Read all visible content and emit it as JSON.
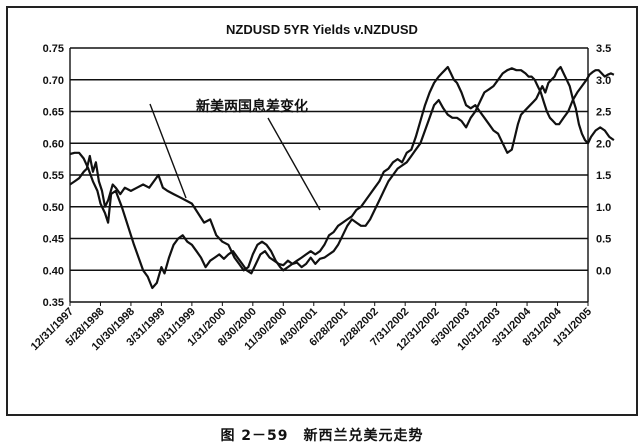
{
  "chart_data": {
    "type": "line",
    "title": "NZDUSD 5YR Yields v.NZDUSD",
    "annotation": "新美两国息差变化",
    "caption": "图 2－59　新西兰兑美元走势",
    "ylim_left": [
      0.35,
      0.75
    ],
    "ylim_right": [
      -0.5,
      3.5
    ],
    "yticks_left": [
      "0.35",
      "0.40",
      "0.45",
      "0.50",
      "0.55",
      "0.60",
      "0.65",
      "0.70",
      "0.75"
    ],
    "yticks_right": [
      "",
      "0.0",
      "0.5",
      "1.0",
      "1.5",
      "2.0",
      "2.5",
      "3.0",
      "3.5"
    ],
    "x_tick_labels": [
      "12/31/1997",
      "5/28/1998",
      "10/30/1998",
      "3/31/1999",
      "8/31/1999",
      "1/31/2000",
      "8/30/2000",
      "11/30/2000",
      "4/30/2001",
      "6/28/2001",
      "2/28/2002",
      "7/31/2002",
      "12/31/2002",
      "5/30/2003",
      "10/31/2003",
      "3/31/2004",
      "8/31/2004",
      "1/31/2005"
    ],
    "grid": "horizontal",
    "series": [
      {
        "axis": "left",
        "points": [
          [
            0.0,
            0.583
          ],
          [
            0.15,
            0.585
          ],
          [
            0.3,
            0.585
          ],
          [
            0.45,
            0.576
          ],
          [
            0.6,
            0.56
          ],
          [
            0.75,
            0.54
          ],
          [
            0.9,
            0.525
          ],
          [
            1.0,
            0.505
          ],
          [
            1.15,
            0.49
          ],
          [
            1.25,
            0.475
          ],
          [
            1.35,
            0.52
          ],
          [
            1.5,
            0.525
          ],
          [
            1.7,
            0.5
          ],
          [
            1.9,
            0.47
          ],
          [
            2.1,
            0.44
          ],
          [
            2.25,
            0.42
          ],
          [
            2.4,
            0.4
          ],
          [
            2.55,
            0.39
          ],
          [
            2.7,
            0.372
          ],
          [
            2.85,
            0.38
          ],
          [
            3.0,
            0.405
          ],
          [
            3.1,
            0.395
          ],
          [
            3.25,
            0.42
          ],
          [
            3.4,
            0.44
          ],
          [
            3.55,
            0.45
          ],
          [
            3.7,
            0.455
          ],
          [
            3.85,
            0.445
          ],
          [
            4.0,
            0.44
          ],
          [
            4.15,
            0.43
          ],
          [
            4.3,
            0.42
          ],
          [
            4.45,
            0.405
          ],
          [
            4.6,
            0.415
          ],
          [
            4.75,
            0.42
          ],
          [
            4.9,
            0.425
          ],
          [
            5.05,
            0.418
          ],
          [
            5.2,
            0.425
          ],
          [
            5.35,
            0.43
          ],
          [
            5.5,
            0.42
          ],
          [
            5.65,
            0.41
          ],
          [
            5.8,
            0.4
          ],
          [
            5.95,
            0.395
          ],
          [
            6.1,
            0.41
          ],
          [
            6.25,
            0.425
          ],
          [
            6.4,
            0.43
          ],
          [
            6.55,
            0.42
          ],
          [
            6.7,
            0.415
          ],
          [
            6.85,
            0.41
          ],
          [
            7.0,
            0.408
          ],
          [
            7.15,
            0.415
          ],
          [
            7.3,
            0.41
          ],
          [
            7.45,
            0.412
          ],
          [
            7.6,
            0.405
          ],
          [
            7.75,
            0.41
          ],
          [
            7.9,
            0.42
          ],
          [
            8.05,
            0.41
          ],
          [
            8.2,
            0.418
          ],
          [
            8.35,
            0.42
          ],
          [
            8.5,
            0.425
          ],
          [
            8.65,
            0.43
          ],
          [
            8.8,
            0.44
          ],
          [
            8.95,
            0.455
          ],
          [
            9.1,
            0.47
          ],
          [
            9.25,
            0.48
          ],
          [
            9.4,
            0.475
          ],
          [
            9.55,
            0.47
          ],
          [
            9.7,
            0.47
          ],
          [
            9.85,
            0.48
          ],
          [
            10.0,
            0.495
          ],
          [
            10.15,
            0.51
          ],
          [
            10.3,
            0.525
          ],
          [
            10.45,
            0.54
          ],
          [
            10.6,
            0.55
          ],
          [
            10.75,
            0.56
          ],
          [
            10.9,
            0.565
          ],
          [
            11.05,
            0.57
          ],
          [
            11.2,
            0.58
          ],
          [
            11.35,
            0.59
          ],
          [
            11.5,
            0.6
          ],
          [
            11.65,
            0.62
          ],
          [
            11.8,
            0.64
          ],
          [
            11.95,
            0.66
          ],
          [
            12.1,
            0.668
          ],
          [
            12.25,
            0.655
          ],
          [
            12.4,
            0.645
          ],
          [
            12.55,
            0.64
          ],
          [
            12.7,
            0.64
          ],
          [
            12.85,
            0.635
          ],
          [
            13.0,
            0.625
          ],
          [
            13.15,
            0.64
          ],
          [
            13.3,
            0.65
          ],
          [
            13.45,
            0.665
          ],
          [
            13.6,
            0.68
          ],
          [
            13.75,
            0.685
          ],
          [
            13.9,
            0.69
          ],
          [
            14.05,
            0.7
          ],
          [
            14.2,
            0.71
          ],
          [
            14.35,
            0.715
          ],
          [
            14.5,
            0.718
          ],
          [
            14.65,
            0.715
          ],
          [
            14.8,
            0.715
          ],
          [
            14.95,
            0.71
          ],
          [
            15.05,
            0.705
          ],
          [
            15.15,
            0.705
          ],
          [
            15.25,
            0.7
          ],
          [
            15.35,
            0.69
          ],
          [
            15.45,
            0.68
          ],
          [
            15.55,
            0.665
          ],
          [
            15.65,
            0.65
          ],
          [
            15.75,
            0.64
          ],
          [
            15.85,
            0.635
          ],
          [
            15.95,
            0.63
          ],
          [
            16.05,
            0.63
          ],
          [
            16.2,
            0.64
          ],
          [
            16.35,
            0.65
          ],
          [
            16.5,
            0.668
          ],
          [
            16.65,
            0.68
          ],
          [
            16.8,
            0.69
          ],
          [
            16.95,
            0.7
          ],
          [
            17.05,
            0.708
          ],
          [
            17.15,
            0.712
          ],
          [
            17.25,
            0.715
          ],
          [
            17.35,
            0.715
          ],
          [
            17.45,
            0.71
          ],
          [
            17.55,
            0.705
          ],
          [
            17.65,
            0.708
          ],
          [
            17.75,
            0.71
          ],
          [
            17.85,
            0.708
          ]
        ]
      },
      {
        "axis": "right",
        "points": [
          [
            0.0,
            1.35
          ],
          [
            0.15,
            1.4
          ],
          [
            0.3,
            1.45
          ],
          [
            0.45,
            1.55
          ],
          [
            0.55,
            1.6
          ],
          [
            0.65,
            1.8
          ],
          [
            0.75,
            1.55
          ],
          [
            0.85,
            1.7
          ],
          [
            0.95,
            1.4
          ],
          [
            1.05,
            1.25
          ],
          [
            1.15,
            1.0
          ],
          [
            1.25,
            1.1
          ],
          [
            1.4,
            1.35
          ],
          [
            1.5,
            1.3
          ],
          [
            1.65,
            1.2
          ],
          [
            1.8,
            1.3
          ],
          [
            2.0,
            1.25
          ],
          [
            2.2,
            1.3
          ],
          [
            2.4,
            1.35
          ],
          [
            2.6,
            1.3
          ],
          [
            2.75,
            1.4
          ],
          [
            2.9,
            1.5
          ],
          [
            3.05,
            1.3
          ],
          [
            3.2,
            1.25
          ],
          [
            3.4,
            1.2
          ],
          [
            3.6,
            1.15
          ],
          [
            3.8,
            1.1
          ],
          [
            4.0,
            1.05
          ],
          [
            4.2,
            0.9
          ],
          [
            4.4,
            0.75
          ],
          [
            4.6,
            0.8
          ],
          [
            4.8,
            0.55
          ],
          [
            5.0,
            0.45
          ],
          [
            5.2,
            0.4
          ],
          [
            5.4,
            0.2
          ],
          [
            5.55,
            0.1
          ],
          [
            5.7,
            0.0
          ],
          [
            5.85,
            0.05
          ],
          [
            6.0,
            0.25
          ],
          [
            6.15,
            0.4
          ],
          [
            6.3,
            0.45
          ],
          [
            6.45,
            0.4
          ],
          [
            6.6,
            0.3
          ],
          [
            6.75,
            0.15
          ],
          [
            6.9,
            0.05
          ],
          [
            7.0,
            0.0
          ],
          [
            7.15,
            0.05
          ],
          [
            7.3,
            0.1
          ],
          [
            7.45,
            0.15
          ],
          [
            7.6,
            0.2
          ],
          [
            7.75,
            0.25
          ],
          [
            7.9,
            0.3
          ],
          [
            8.05,
            0.25
          ],
          [
            8.2,
            0.3
          ],
          [
            8.35,
            0.4
          ],
          [
            8.5,
            0.55
          ],
          [
            8.65,
            0.6
          ],
          [
            8.8,
            0.7
          ],
          [
            8.95,
            0.75
          ],
          [
            9.1,
            0.8
          ],
          [
            9.25,
            0.85
          ],
          [
            9.4,
            0.95
          ],
          [
            9.55,
            1.0
          ],
          [
            9.7,
            1.1
          ],
          [
            9.85,
            1.2
          ],
          [
            10.0,
            1.3
          ],
          [
            10.15,
            1.4
          ],
          [
            10.3,
            1.55
          ],
          [
            10.45,
            1.6
          ],
          [
            10.6,
            1.7
          ],
          [
            10.75,
            1.75
          ],
          [
            10.9,
            1.7
          ],
          [
            11.05,
            1.85
          ],
          [
            11.2,
            1.9
          ],
          [
            11.35,
            2.1
          ],
          [
            11.5,
            2.35
          ],
          [
            11.65,
            2.6
          ],
          [
            11.8,
            2.8
          ],
          [
            11.95,
            2.95
          ],
          [
            12.1,
            3.05
          ],
          [
            12.2,
            3.1
          ],
          [
            12.3,
            3.15
          ],
          [
            12.4,
            3.2
          ],
          [
            12.5,
            3.1
          ],
          [
            12.6,
            3.0
          ],
          [
            12.7,
            2.95
          ],
          [
            12.85,
            2.8
          ],
          [
            13.0,
            2.6
          ],
          [
            13.15,
            2.55
          ],
          [
            13.3,
            2.6
          ],
          [
            13.45,
            2.5
          ],
          [
            13.6,
            2.4
          ],
          [
            13.75,
            2.3
          ],
          [
            13.9,
            2.2
          ],
          [
            14.05,
            2.15
          ],
          [
            14.2,
            2.0
          ],
          [
            14.35,
            1.85
          ],
          [
            14.5,
            1.9
          ],
          [
            14.6,
            2.1
          ],
          [
            14.7,
            2.3
          ],
          [
            14.8,
            2.45
          ],
          [
            14.9,
            2.5
          ],
          [
            15.0,
            2.55
          ],
          [
            15.1,
            2.6
          ],
          [
            15.2,
            2.65
          ],
          [
            15.3,
            2.7
          ],
          [
            15.4,
            2.8
          ],
          [
            15.5,
            2.9
          ],
          [
            15.6,
            2.8
          ],
          [
            15.7,
            2.95
          ],
          [
            15.8,
            3.0
          ],
          [
            15.9,
            3.05
          ],
          [
            16.0,
            3.15
          ],
          [
            16.1,
            3.2
          ],
          [
            16.2,
            3.1
          ],
          [
            16.3,
            3.0
          ],
          [
            16.4,
            2.9
          ],
          [
            16.5,
            2.7
          ],
          [
            16.6,
            2.55
          ],
          [
            16.7,
            2.3
          ],
          [
            16.8,
            2.15
          ],
          [
            16.9,
            2.05
          ],
          [
            17.0,
            2.0
          ],
          [
            17.1,
            2.1
          ],
          [
            17.25,
            2.2
          ],
          [
            17.4,
            2.25
          ],
          [
            17.55,
            2.2
          ],
          [
            17.7,
            2.1
          ],
          [
            17.85,
            2.05
          ]
        ]
      }
    ]
  }
}
